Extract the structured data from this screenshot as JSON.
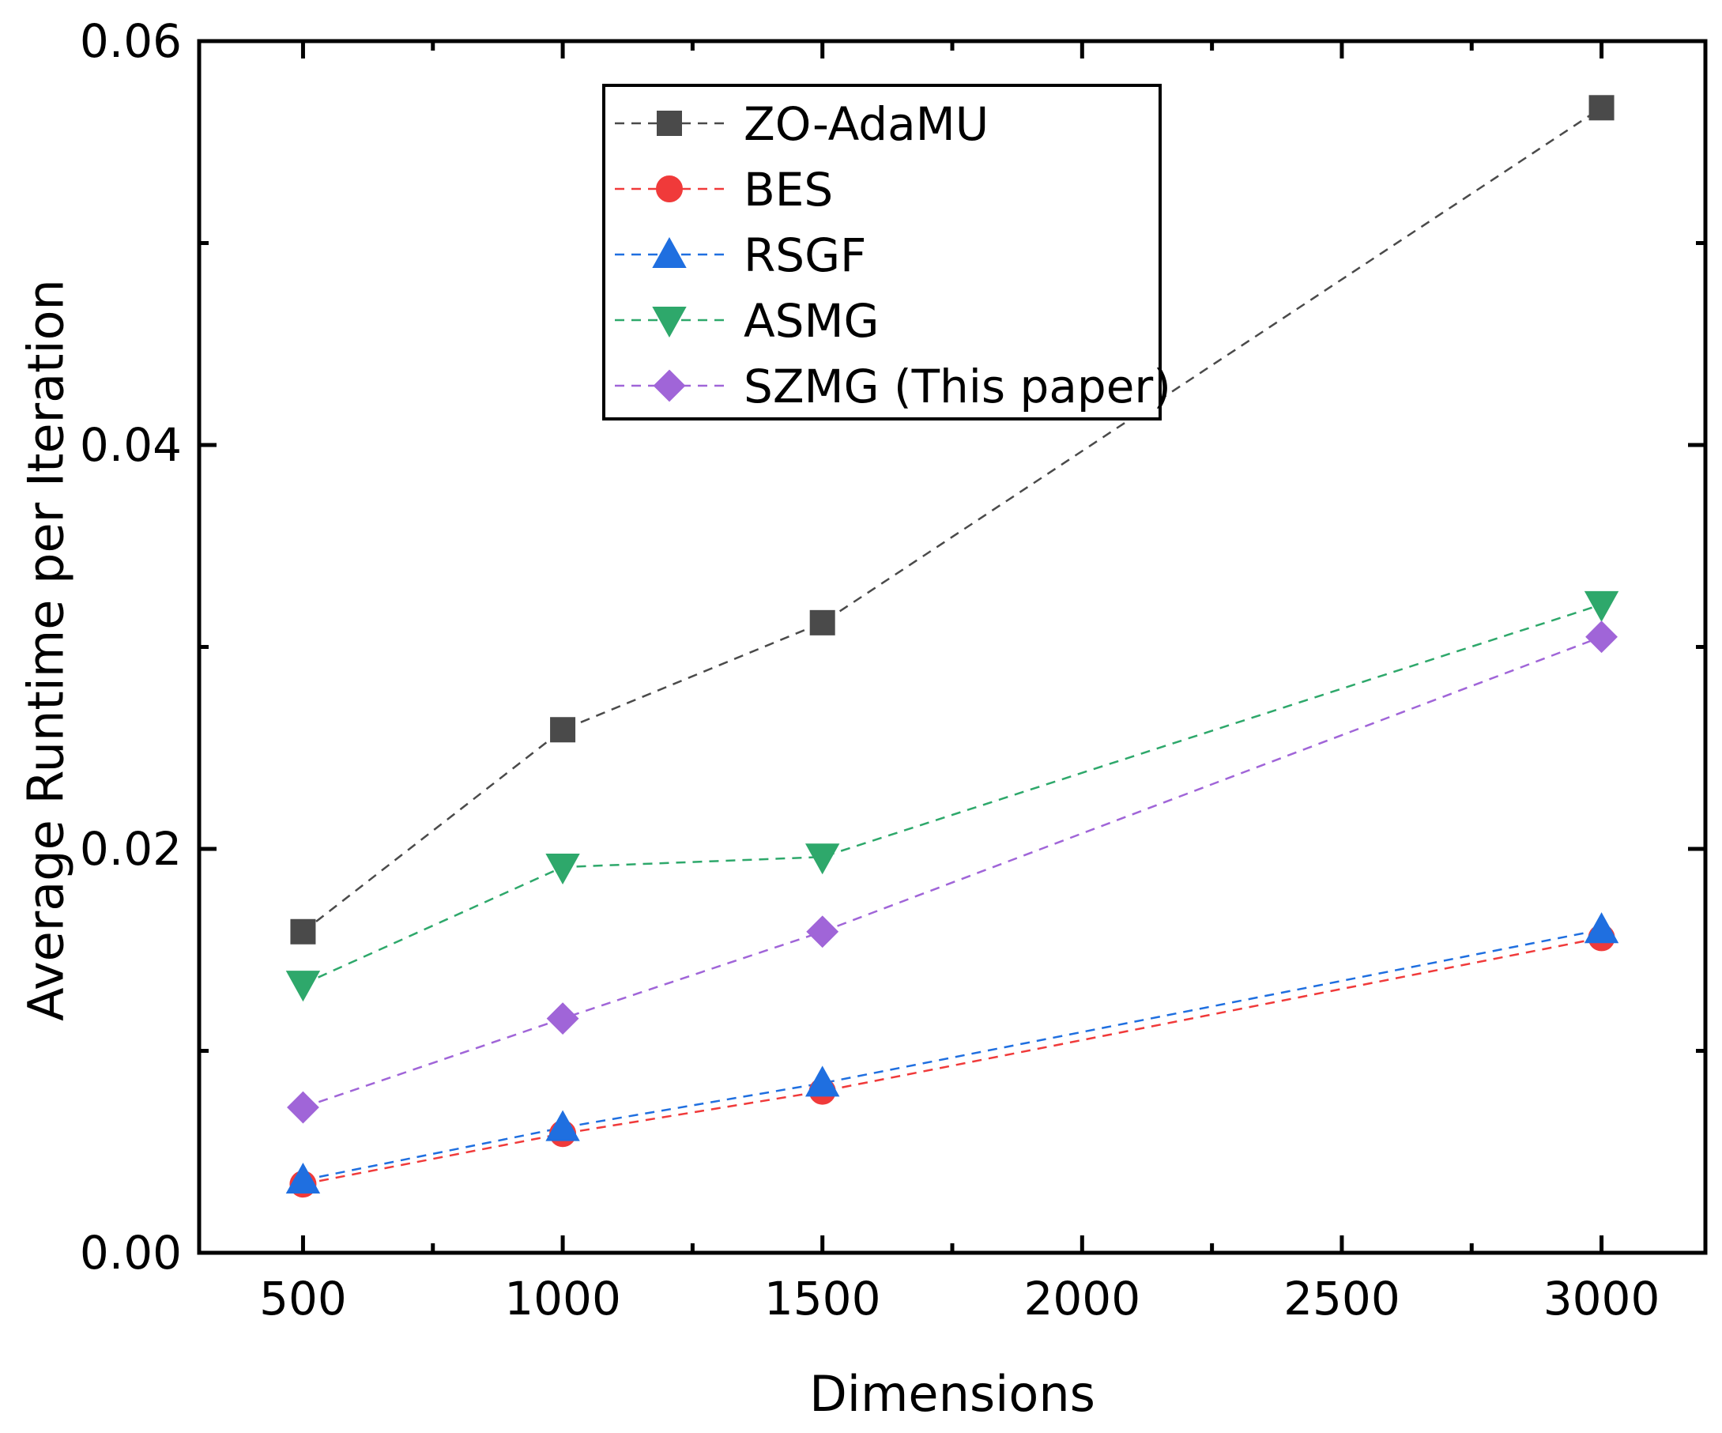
{
  "chart_data": {
    "type": "line",
    "title": "",
    "xlabel": "Dimensions",
    "ylabel": "Average Runtime per Iteration",
    "xlim": [
      300,
      3200
    ],
    "ylim": [
      0,
      0.06
    ],
    "x_ticks": [
      500,
      1000,
      1500,
      2000,
      2500,
      3000
    ],
    "x_tick_labels": [
      "500",
      "1000",
      "1500",
      "2000",
      "2500",
      "3000"
    ],
    "y_ticks": [
      0,
      0.02,
      0.04,
      0.06
    ],
    "y_tick_labels": [
      "0.00",
      "0.02",
      "0.04",
      "0.06"
    ],
    "grid": false,
    "legend_position": "top-center",
    "series": [
      {
        "name": "ZO-AdaMU",
        "color": "#4a4a4a",
        "marker": "square",
        "x": [
          500,
          1000,
          1500,
          3000
        ],
        "values": [
          0.0159,
          0.0259,
          0.0312,
          0.0567
        ]
      },
      {
        "name": "BES",
        "color": "#f03a3a",
        "marker": "circle",
        "x": [
          500,
          1000,
          1500,
          3000
        ],
        "values": [
          0.0034,
          0.0059,
          0.008,
          0.0156
        ]
      },
      {
        "name": "RSGF",
        "color": "#1f6fe0",
        "marker": "triangle-up",
        "x": [
          500,
          1000,
          1500,
          3000
        ],
        "values": [
          0.0036,
          0.0062,
          0.0084,
          0.016
        ]
      },
      {
        "name": "ASMG",
        "color": "#2ea86b",
        "marker": "triangle-down",
        "x": [
          500,
          1000,
          1500,
          3000
        ],
        "values": [
          0.0133,
          0.0191,
          0.0196,
          0.0321
        ]
      },
      {
        "name": "SZMG (This paper)",
        "color": "#a065d8",
        "marker": "diamond",
        "x": [
          500,
          1000,
          1500,
          3000
        ],
        "values": [
          0.0072,
          0.0116,
          0.0159,
          0.0305
        ]
      }
    ]
  }
}
